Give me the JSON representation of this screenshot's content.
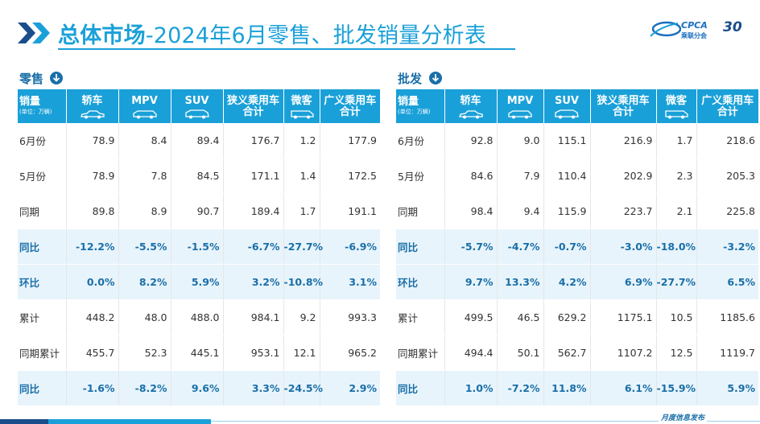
{
  "header": {
    "title_bold": "总体市场",
    "title_rest": "-2024年6月零售、批发销量分析表",
    "logo_text": "CPCA",
    "logo_sub": "乘联分会",
    "logo_30": "30"
  },
  "retail": {
    "label": "零售",
    "header_first": "销量",
    "header_unit": "(单位：万辆)",
    "columns": [
      {
        "l1": "轿车",
        "l2": "",
        "icon": "sedan-icon"
      },
      {
        "l1": "MPV",
        "l2": "",
        "icon": "mpv-icon"
      },
      {
        "l1": "SUV",
        "l2": "",
        "icon": "suv-icon"
      },
      {
        "l1": "狭义乘用车",
        "l2": "合计",
        "icon": ""
      },
      {
        "l1": "微客",
        "l2": "",
        "icon": "minivan-icon"
      },
      {
        "l1": "广义乘用车",
        "l2": "合计",
        "icon": ""
      }
    ],
    "rows": [
      {
        "label": "6月份",
        "values": [
          "78.9",
          "8.4",
          "89.4",
          "176.7",
          "1.2",
          "177.9"
        ],
        "hi": false
      },
      {
        "label": "5月份",
        "values": [
          "78.9",
          "7.8",
          "84.5",
          "171.1",
          "1.4",
          "172.5"
        ],
        "hi": false
      },
      {
        "label": "同期",
        "values": [
          "89.8",
          "8.9",
          "90.7",
          "189.4",
          "1.7",
          "191.1"
        ],
        "hi": false
      },
      {
        "label": "同比",
        "values": [
          "-12.2%",
          "-5.5%",
          "-1.5%",
          "-6.7%",
          "-27.7%",
          "-6.9%"
        ],
        "hi": true
      },
      {
        "label": "环比",
        "values": [
          "0.0%",
          "8.2%",
          "5.9%",
          "3.2%",
          "-10.8%",
          "3.1%"
        ],
        "hi": true
      },
      {
        "label": "累计",
        "values": [
          "448.2",
          "48.0",
          "488.0",
          "984.1",
          "9.2",
          "993.3"
        ],
        "hi": false
      },
      {
        "label": "同期累计",
        "values": [
          "455.7",
          "52.3",
          "445.1",
          "953.1",
          "12.1",
          "965.2"
        ],
        "hi": false
      },
      {
        "label": "同比",
        "values": [
          "-1.6%",
          "-8.2%",
          "9.6%",
          "3.3%",
          "-24.5%",
          "2.9%"
        ],
        "hi": true
      }
    ]
  },
  "wholesale": {
    "label": "批发",
    "header_first": "销量",
    "header_unit": "(单位：万辆)",
    "columns": [
      {
        "l1": "轿车",
        "l2": "",
        "icon": "sedan-icon"
      },
      {
        "l1": "MPV",
        "l2": "",
        "icon": "mpv-icon"
      },
      {
        "l1": "SUV",
        "l2": "",
        "icon": "suv-icon"
      },
      {
        "l1": "狭义乘用车",
        "l2": "合计",
        "icon": ""
      },
      {
        "l1": "微客",
        "l2": "",
        "icon": "minivan-icon"
      },
      {
        "l1": "广义乘用车",
        "l2": "合计",
        "icon": ""
      }
    ],
    "rows": [
      {
        "label": "6月份",
        "values": [
          "92.8",
          "9.0",
          "115.1",
          "216.9",
          "1.7",
          "218.6"
        ],
        "hi": false
      },
      {
        "label": "5月份",
        "values": [
          "84.6",
          "7.9",
          "110.4",
          "202.9",
          "2.3",
          "205.3"
        ],
        "hi": false
      },
      {
        "label": "同期",
        "values": [
          "98.4",
          "9.4",
          "115.9",
          "223.7",
          "2.1",
          "225.8"
        ],
        "hi": false
      },
      {
        "label": "同比",
        "values": [
          "-5.7%",
          "-4.7%",
          "-0.7%",
          "-3.0%",
          "-18.0%",
          "-3.2%"
        ],
        "hi": true
      },
      {
        "label": "环比",
        "values": [
          "9.7%",
          "13.3%",
          "4.2%",
          "6.9%",
          "-27.7%",
          "6.5%"
        ],
        "hi": true
      },
      {
        "label": "累计",
        "values": [
          "499.5",
          "46.5",
          "629.2",
          "1175.1",
          "10.5",
          "1185.6"
        ],
        "hi": false
      },
      {
        "label": "同期累计",
        "values": [
          "494.4",
          "50.1",
          "562.7",
          "1107.2",
          "12.5",
          "1119.7"
        ],
        "hi": false
      },
      {
        "label": "同比",
        "values": [
          "1.0%",
          "-7.2%",
          "11.8%",
          "6.1%",
          "-15.9%",
          "5.9%"
        ],
        "hi": true
      }
    ]
  },
  "footer": {
    "text": "月度信息发布"
  },
  "colors": {
    "accent": "#1aa0d8",
    "dark_blue": "#1a6fa8",
    "highlight_row": "#e8f4fb"
  }
}
